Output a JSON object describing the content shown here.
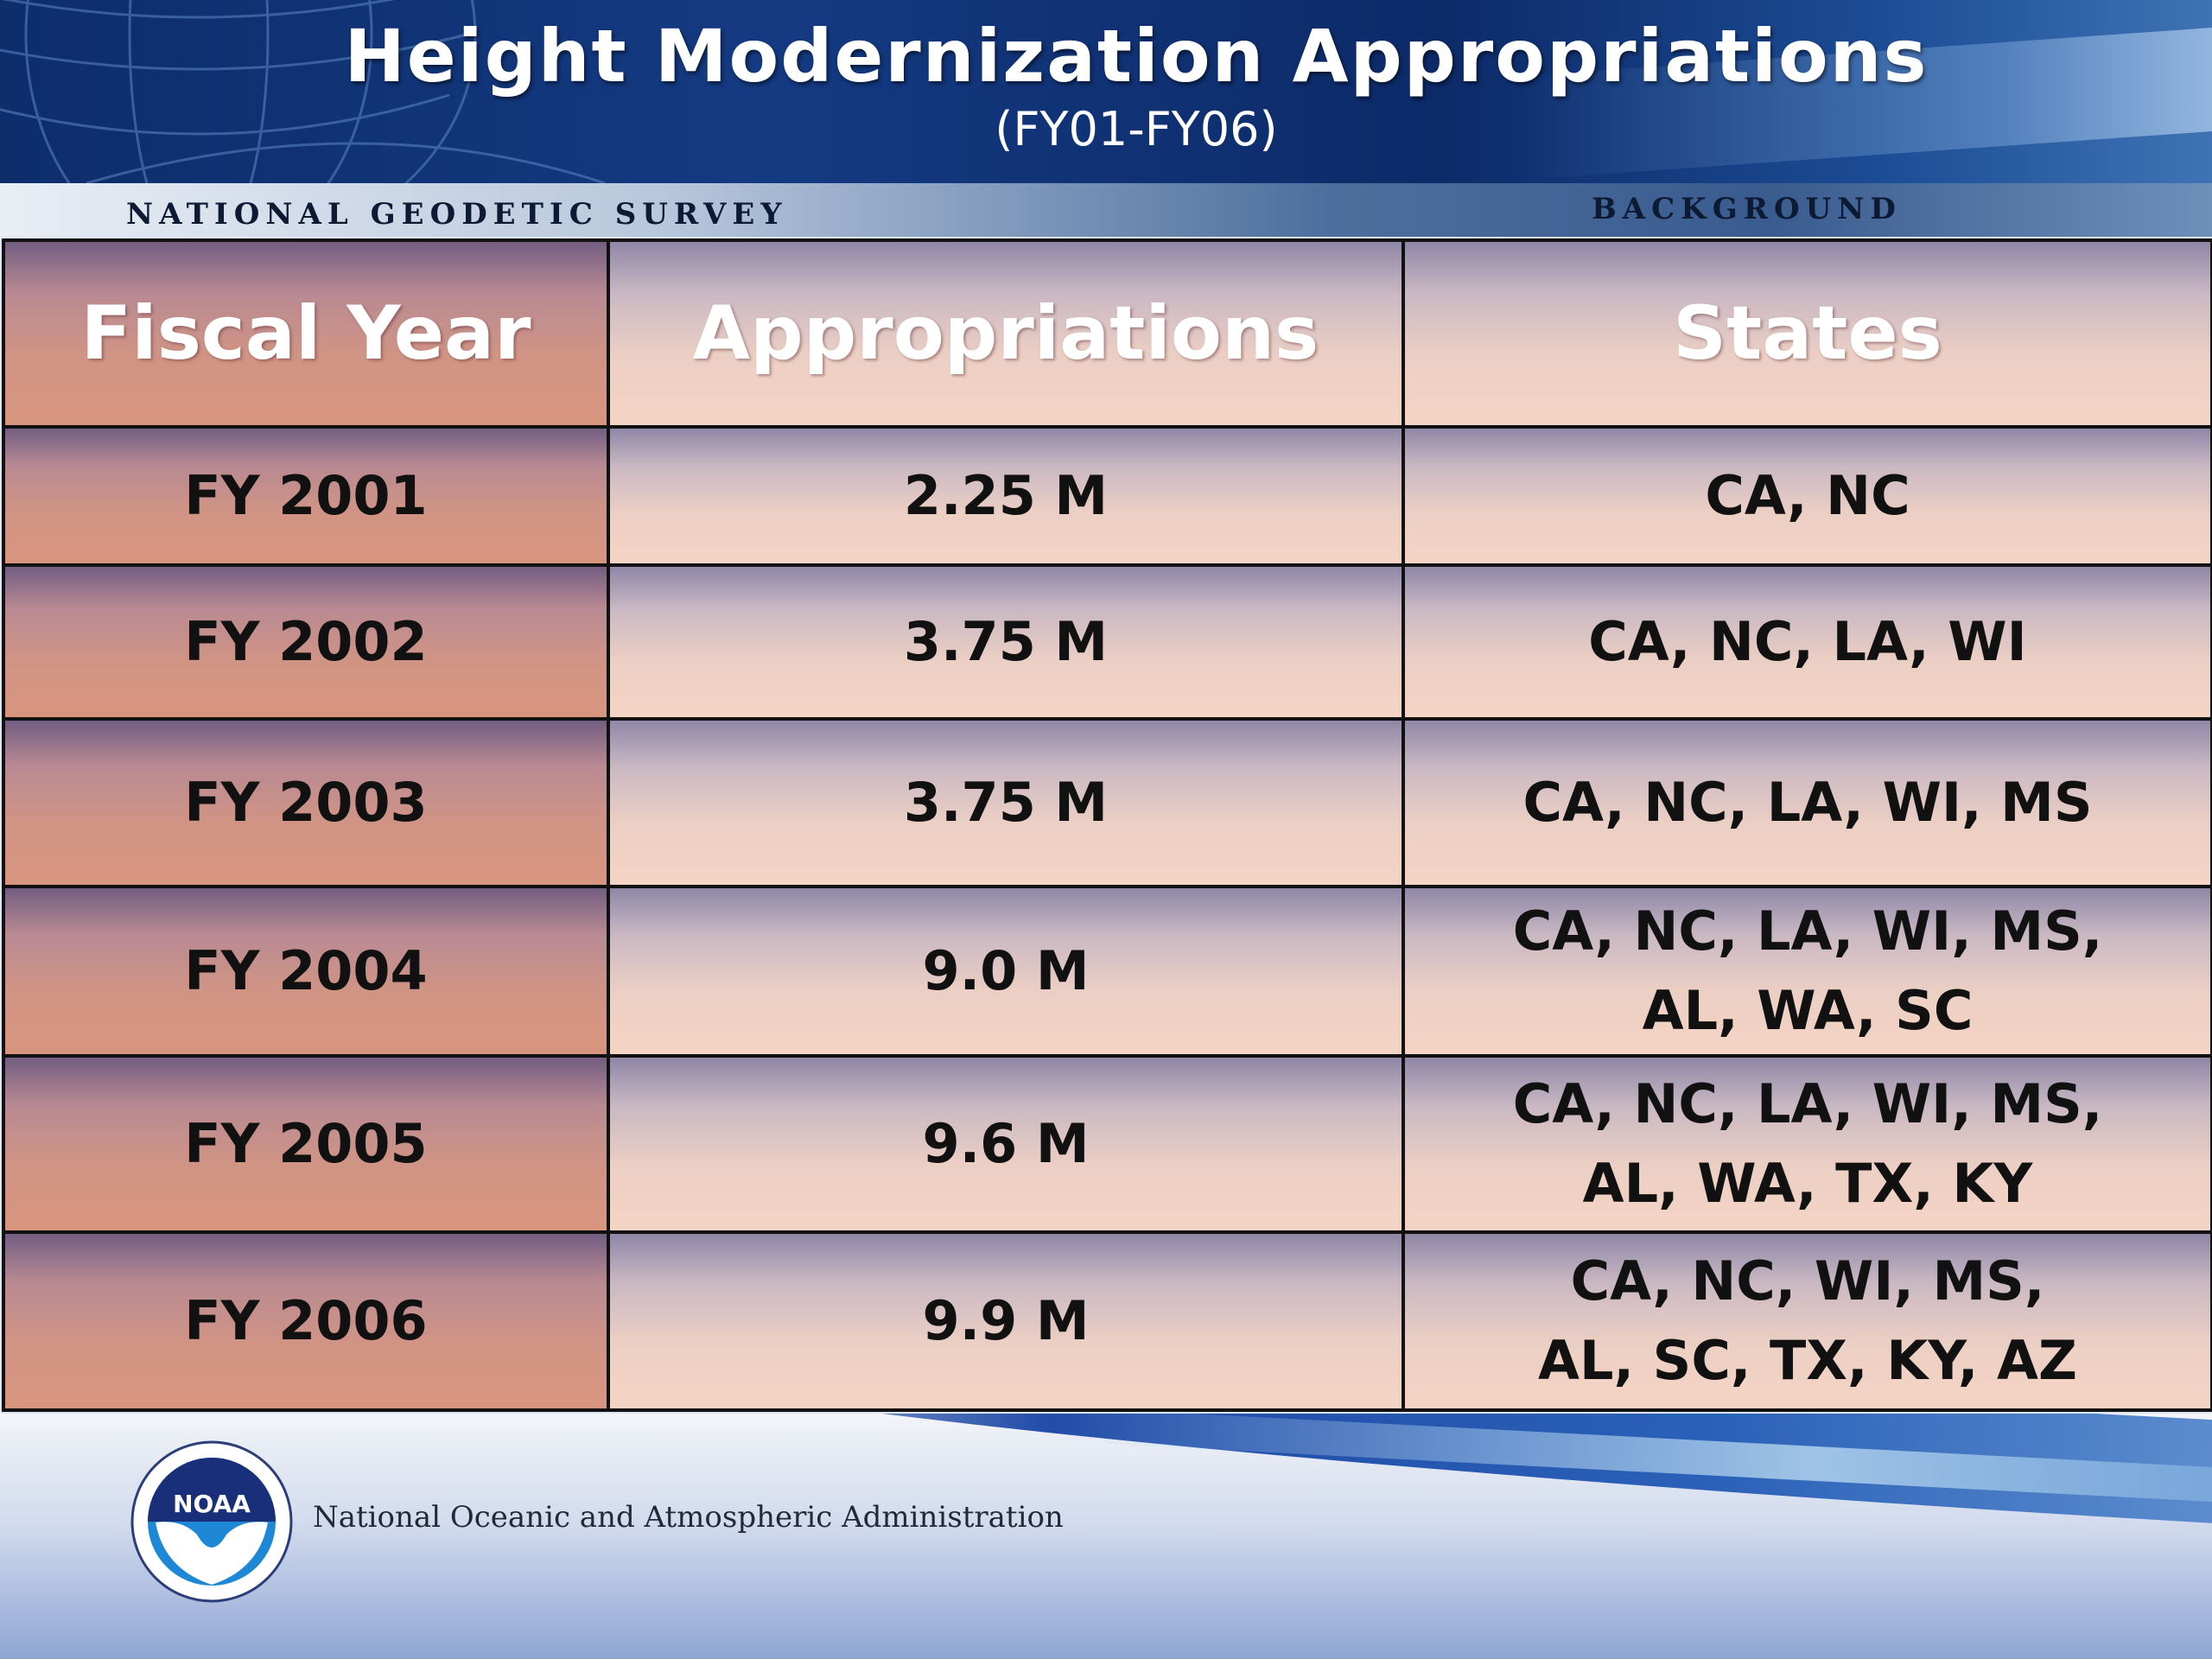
{
  "header": {
    "title": "Height Modernization Appropriations",
    "subtitle": "(FY01-FY06)"
  },
  "band": {
    "left_label": "NATIONAL GEODETIC SURVEY",
    "right_label": "BACKGROUND"
  },
  "table": {
    "columns": [
      "Fiscal Year",
      "Appropriations",
      "States"
    ],
    "rows": [
      {
        "year": "FY 2001",
        "amount": "2.25 M",
        "states_line1": "CA, NC",
        "states_line2": ""
      },
      {
        "year": "FY 2002",
        "amount": "3.75 M",
        "states_line1": "CA, NC, LA, WI",
        "states_line2": ""
      },
      {
        "year": "FY 2003",
        "amount": "3.75 M",
        "states_line1": "CA, NC, LA, WI, MS",
        "states_line2": ""
      },
      {
        "year": "FY 2004",
        "amount": "9.0 M",
        "states_line1": "CA, NC, LA, WI, MS,",
        "states_line2": "AL, WA, SC"
      },
      {
        "year": "FY 2005",
        "amount": "9.6 M",
        "states_line1": "CA, NC, LA, WI, MS,",
        "states_line2": "AL, WA, TX, KY"
      },
      {
        "year": "FY 2006",
        "amount": "9.9 M",
        "states_line1": "CA, NC, WI, MS,",
        "states_line2": "AL, SC, TX, KY, AZ"
      }
    ]
  },
  "footer": {
    "logo_text": "NOAA",
    "organization": "National Oceanic and Atmospheric Administration"
  },
  "colors": {
    "header_navy": "#0d2d6b",
    "year_cell": "#d9957e",
    "value_cell": "#f4d4c4",
    "noaa_blue": "#1e88d6"
  }
}
